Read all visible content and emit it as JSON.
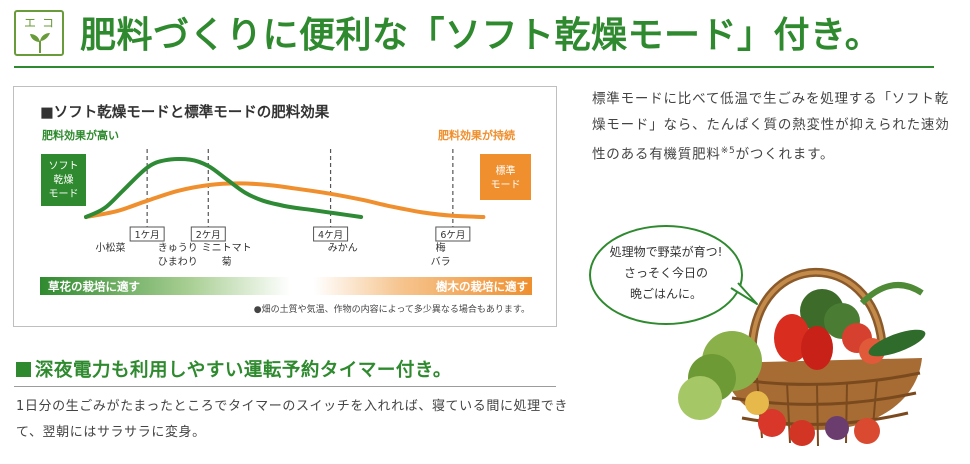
{
  "badge": {
    "label": "エコ"
  },
  "headline": "肥料づくりに便利な「ソフト乾燥モード」付き。",
  "chart_data": {
    "type": "line",
    "title": "■ソフト乾燥モードと標準モードの肥料効果",
    "label_left": "肥料効果が高い",
    "label_right": "肥料効果が持続",
    "box_left": [
      "ソフト",
      "乾燥",
      "モード"
    ],
    "box_right": [
      "標準",
      "モード"
    ],
    "x_ticks": [
      "1ケ月",
      "2ケ月",
      "4ケ月",
      "6ケ月"
    ],
    "x_tick_positions": [
      1,
      2,
      4,
      6
    ],
    "crops": [
      {
        "x": 0.4,
        "lines": [
          "小松菜"
        ]
      },
      {
        "x": 1.5,
        "lines": [
          "きゅうり",
          "ひまわり"
        ]
      },
      {
        "x": 2.3,
        "lines": [
          "ミニトマト",
          "菊"
        ]
      },
      {
        "x": 4.2,
        "lines": [
          "みかん"
        ]
      },
      {
        "x": 5.8,
        "lines": [
          "梅",
          "バラ"
        ]
      }
    ],
    "xlim": [
      0,
      7
    ],
    "ylim": [
      0,
      100
    ],
    "series": [
      {
        "name": "ソフト乾燥モード",
        "color": "#2e8a34",
        "x": [
          0,
          0.3,
          0.6,
          1.0,
          1.3,
          1.7,
          2.0,
          2.3,
          2.6,
          2.9,
          3.3,
          3.7,
          4.1,
          4.5
        ],
        "y": [
          0,
          15,
          45,
          85,
          98,
          99,
          88,
          65,
          42,
          28,
          18,
          12,
          6,
          0
        ]
      },
      {
        "name": "標準モード",
        "color": "#ef8f2e",
        "x": [
          0,
          0.5,
          1.0,
          1.5,
          2.0,
          2.5,
          3.0,
          3.5,
          4.0,
          4.5,
          5.0,
          5.5,
          6.0,
          6.5
        ],
        "y": [
          0,
          10,
          28,
          45,
          55,
          58,
          55,
          48,
          40,
          30,
          18,
          8,
          2,
          0
        ]
      }
    ],
    "band_left": "草花の栽培に適す",
    "band_right": "樹木の栽培に適す",
    "note": "●畑の土質や気温、作物の内容によって多少異なる場合もあります。"
  },
  "description": {
    "text": "標準モードに比べて低温で生ごみを処理する「ソフト乾燥モード」なら、たんぱく質の熱変性が抑えられた速効性のある有機質肥料",
    "sup": "※5",
    "text2": "がつくれます。"
  },
  "bubble": {
    "lines": [
      "処理物で野菜が育つ!",
      "さっそく今日の",
      "晩ごはんに。"
    ]
  },
  "timer": {
    "title": "深夜電力も利用しやすい運転予約タイマー付き。",
    "text": "1日分の生ごみがたまったところでタイマーのスイッチを入れれば、寝ている間に処理できて、翌朝にはサラサラに変身。"
  },
  "colors": {
    "green": "#2f8a2f",
    "orange": "#ef8f2e"
  }
}
